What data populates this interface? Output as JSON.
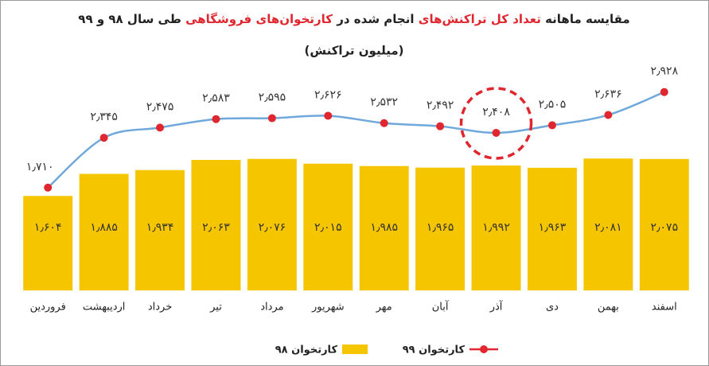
{
  "chart_data": {
    "type": "bar-line",
    "title": [
      "مقایسه ماهانه ",
      "تعداد کل تراکنش‌های",
      " انجام شده در ",
      "کارتخوان‌های فروشگاهی",
      " طی سال ۹۸ و ۹۹"
    ],
    "title_accent_color": "#e0262e",
    "subtitle": "(میلیون تراکنش)",
    "categories": [
      "فروردین",
      "اردیبهشت",
      "خرداد",
      "تیر",
      "مرداد",
      "شهریور",
      "مهر",
      "آبان",
      "آذر",
      "دی",
      "بهمن",
      "اسفند"
    ],
    "ylim": [
      0.4,
      3.3
    ],
    "highlight": 8,
    "series": [
      {
        "name": "کارتخوان ۹۸",
        "type": "bar",
        "color": "#f5c500",
        "values": [
          1.604,
          1.885,
          1.934,
          2.063,
          2.076,
          2.015,
          1.985,
          1.965,
          1.992,
          1.963,
          2.081,
          2.075
        ],
        "value_labels": [
          "۱٫۶۰۴",
          "۱٫۸۸۵",
          "۱٫۹۳۴",
          "۲٫۰۶۳",
          "۲٫۰۷۶",
          "۲٫۰۱۵",
          "۱٫۹۸۵",
          "۱٫۹۶۵",
          "۱٫۹۹۲",
          "۱٫۹۶۳",
          "۲٫۰۸۱",
          "۲٫۰۷۵"
        ]
      },
      {
        "name": "کارتخوان ۹۹",
        "type": "line",
        "color": "#6fa8dc",
        "marker_color": "#e0262e",
        "values": [
          1.71,
          2.345,
          2.475,
          2.583,
          2.595,
          2.626,
          2.532,
          2.492,
          2.408,
          2.505,
          2.636,
          2.928
        ],
        "value_labels": [
          "۱٫۷۱۰",
          "۲٫۳۴۵",
          "۲٫۴۷۵",
          "۲٫۵۸۳",
          "۲٫۵۹۵",
          "۲٫۶۲۶",
          "۲٫۵۳۲",
          "۲٫۴۹۲",
          "۲٫۴۰۸",
          "۲٫۵۰۵",
          "۲٫۶۳۶",
          "۲٫۹۲۸"
        ]
      }
    ]
  }
}
